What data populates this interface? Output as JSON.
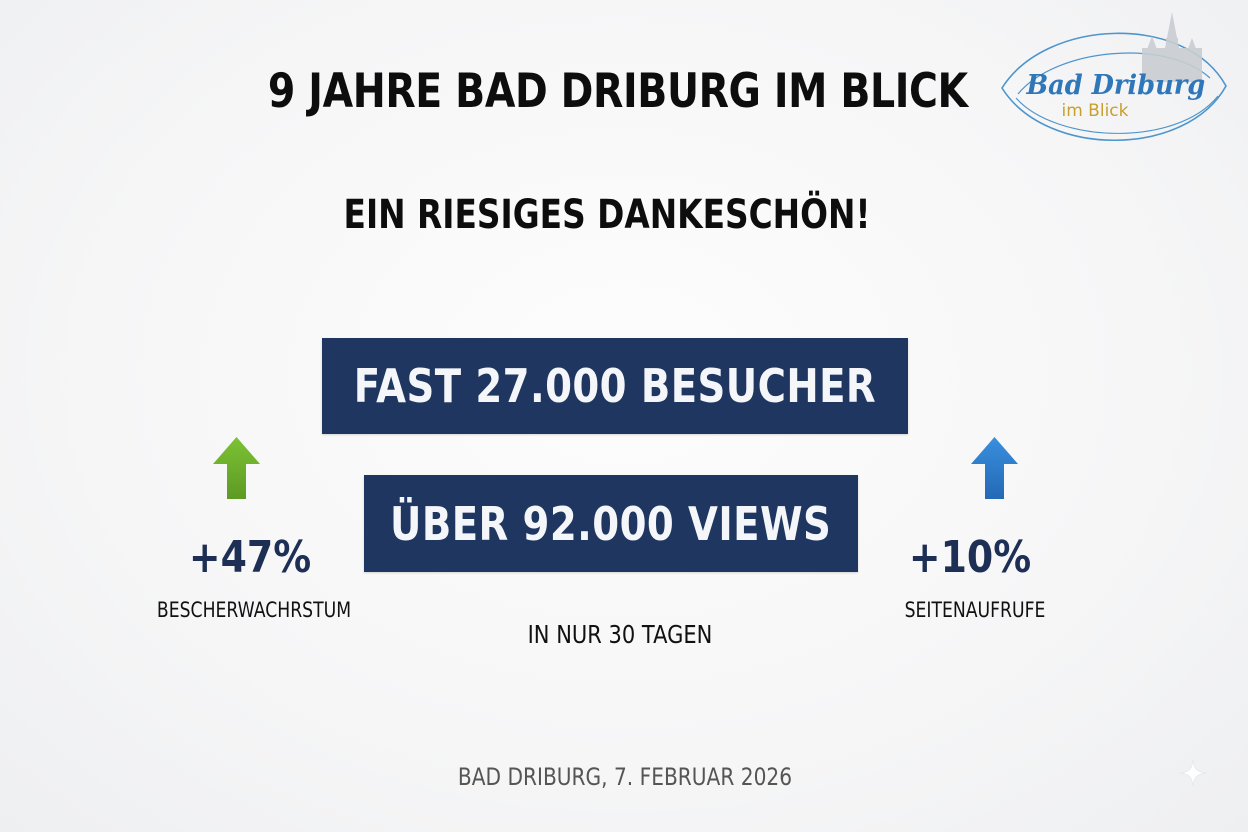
{
  "header": {
    "title": "9 JAHRE BAD DRIBURG IM BLICK",
    "subtitle": "EIN RIESIGES DANKESCHÖN!"
  },
  "logo": {
    "text_main": "Bad Driburg",
    "text_sub": "im Blick"
  },
  "banners": {
    "visitors": "FAST 27.000 BESUCHER",
    "views": "ÜBER 92.000 VIEWS"
  },
  "stats": {
    "left": {
      "value": "+47%",
      "label": "BESCHERWACHRSTUM",
      "arrow": "up-arrow-icon",
      "color": "#6aaa2b"
    },
    "right": {
      "value": "+10%",
      "label": "SEITENAUFRUFE",
      "arrow": "up-arrow-icon",
      "color": "#2f7fcf"
    }
  },
  "period": "IN NUR 30 TAGEN",
  "footer": "BAD DRIBURG, 7. FEBRUAR 2026",
  "colors": {
    "banner_background": "#1f3760",
    "stat_value": "#1d2f55",
    "logo_blue": "#2f77b8",
    "logo_gold": "#c9a02c"
  }
}
